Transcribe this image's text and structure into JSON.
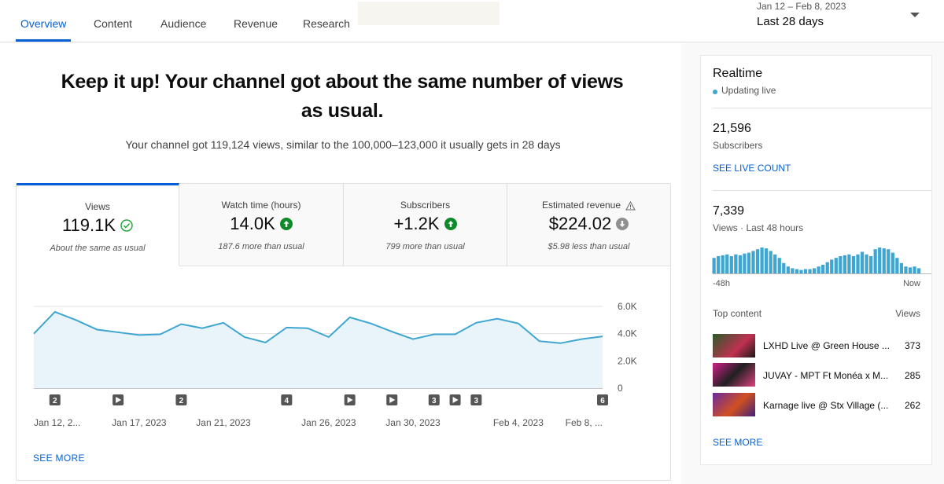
{
  "tabs": {
    "items": [
      "Overview",
      "Content",
      "Audience",
      "Revenue",
      "Research"
    ],
    "active": 0
  },
  "date_range": {
    "dates": "Jan 12 – Feb 8, 2023",
    "period": "Last 28 days"
  },
  "headline": {
    "title": "Keep it up! Your channel got about the same number of views as usual.",
    "summary": "Your channel got 119,124 views, similar to the 100,000–123,000 it usually gets in 28 days"
  },
  "metrics": [
    {
      "label": "Views",
      "value": "119.1K",
      "trend": "same",
      "note": "About the same as usual"
    },
    {
      "label": "Watch time (hours)",
      "value": "14.0K",
      "trend": "up",
      "note": "187.6 more than usual"
    },
    {
      "label": "Subscribers",
      "value": "+1.2K",
      "trend": "up",
      "note": "799 more than usual"
    },
    {
      "label": "Estimated revenue",
      "value": "$224.02",
      "trend": "down",
      "note": "$5.98 less than usual",
      "warning": true
    }
  ],
  "chart_data": {
    "type": "line",
    "area": true,
    "color": "#3ea6d0",
    "categories": [
      "Jan 12, 2...",
      null,
      null,
      null,
      null,
      "Jan 17, 2023",
      null,
      null,
      null,
      "Jan 21, 2023",
      null,
      null,
      null,
      null,
      "Jan 26, 2023",
      null,
      null,
      null,
      "Jan 30, 2023",
      null,
      null,
      null,
      null,
      "Feb 4, 2023",
      null,
      null,
      null,
      "Feb 8, ..."
    ],
    "values": [
      4000,
      5600,
      5000,
      4300,
      4100,
      3900,
      3950,
      4700,
      4400,
      4800,
      3750,
      3350,
      4450,
      4400,
      3750,
      5200,
      4750,
      4150,
      3600,
      3950,
      3950,
      4800,
      5100,
      4750,
      3450,
      3300,
      3600,
      3800
    ],
    "ylim": [
      0,
      6000
    ],
    "yticks": [
      0,
      {
        "value": 2000,
        "label": "2.0K"
      },
      {
        "value": 4000,
        "label": "4.0K"
      },
      {
        "value": 6000,
        "label": "6.0K"
      }
    ],
    "grid": true,
    "markers": [
      {
        "index": 1,
        "label": "2"
      },
      {
        "index": 4,
        "icon": "play"
      },
      {
        "index": 7,
        "label": "2"
      },
      {
        "index": 12,
        "label": "4"
      },
      {
        "index": 15,
        "icon": "play"
      },
      {
        "index": 17,
        "icon": "play"
      },
      {
        "index": 19,
        "label": "3"
      },
      {
        "index": 20,
        "icon": "play"
      },
      {
        "index": 21,
        "label": "3"
      },
      {
        "index": 27,
        "label": "6"
      }
    ]
  },
  "see_more": "SEE MORE",
  "realtime": {
    "title": "Realtime",
    "status": "Updating live",
    "subscribers": "21,596",
    "subscribers_label": "Subscribers",
    "live_count": "SEE LIVE COUNT",
    "views": "7,339",
    "views_label": "Views · Last 48 hours",
    "views_chart": {
      "type": "bar",
      "color": "#3ea6d0",
      "values": [
        144,
        160,
        168,
        176,
        160,
        176,
        168,
        184,
        192,
        208,
        224,
        240,
        232,
        208,
        176,
        144,
        96,
        64,
        48,
        40,
        32,
        40,
        40,
        48,
        64,
        80,
        104,
        128,
        144,
        160,
        168,
        176,
        160,
        176,
        200,
        176,
        160,
        224,
        240,
        232,
        224,
        192,
        144,
        96,
        64,
        56,
        64,
        48
      ],
      "start_label": "-48h",
      "end_label": "Now"
    },
    "top_content": {
      "title": "Top content",
      "column": "Views",
      "items": [
        {
          "title": "LXHD Live @ Green House ...",
          "views": "373"
        },
        {
          "title": "JUVAY - MPT Ft Monéa x M...",
          "views": "285"
        },
        {
          "title": "Karnage live @ Stx Village (...",
          "views": "262"
        }
      ]
    },
    "see_more": "SEE MORE"
  }
}
